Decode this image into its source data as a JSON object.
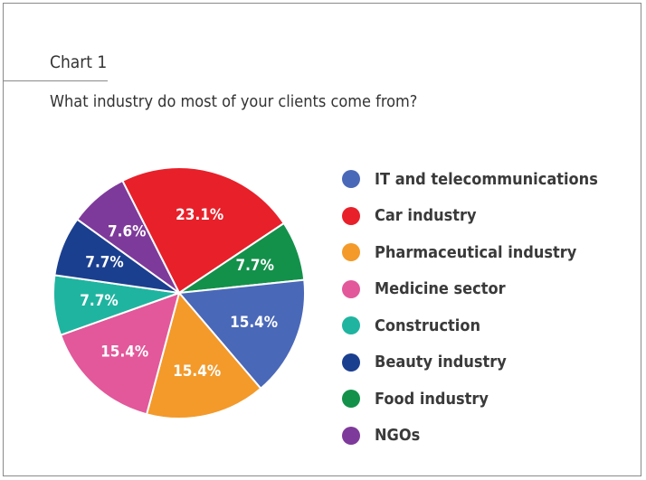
{
  "header": {
    "chart_label": "Chart 1",
    "question": "What industry do most of your clients come from?"
  },
  "chart_data": {
    "type": "pie",
    "title": "Chart 1",
    "subtitle": "What industry do most of your clients come from?",
    "legend_position": "right",
    "slices": [
      {
        "name": "IT and telecommunications",
        "value": 15.4,
        "label": "15.4%",
        "color": "#4a68b8"
      },
      {
        "name": "Car industry",
        "value": 23.1,
        "label": "23.1%",
        "color": "#e8202a"
      },
      {
        "name": "Pharmaceutical industry",
        "value": 15.4,
        "label": "15.4%",
        "color": "#f39a2a"
      },
      {
        "name": "Medicine sector",
        "value": 15.4,
        "label": "15.4%",
        "color": "#e2589a"
      },
      {
        "name": "Construction",
        "value": 7.7,
        "label": "7.7%",
        "color": "#1fb4a0"
      },
      {
        "name": "Beauty industry",
        "value": 7.7,
        "label": "7.7%",
        "color": "#1b3f8f"
      },
      {
        "name": "Food industry",
        "value": 7.7,
        "label": "7.7%",
        "color": "#13914a"
      },
      {
        "name": "NGOs",
        "value": 7.6,
        "label": "7.6%",
        "color": "#7e3a9a"
      }
    ],
    "draw_order": [
      1,
      6,
      0,
      2,
      3,
      4,
      5,
      7
    ]
  }
}
